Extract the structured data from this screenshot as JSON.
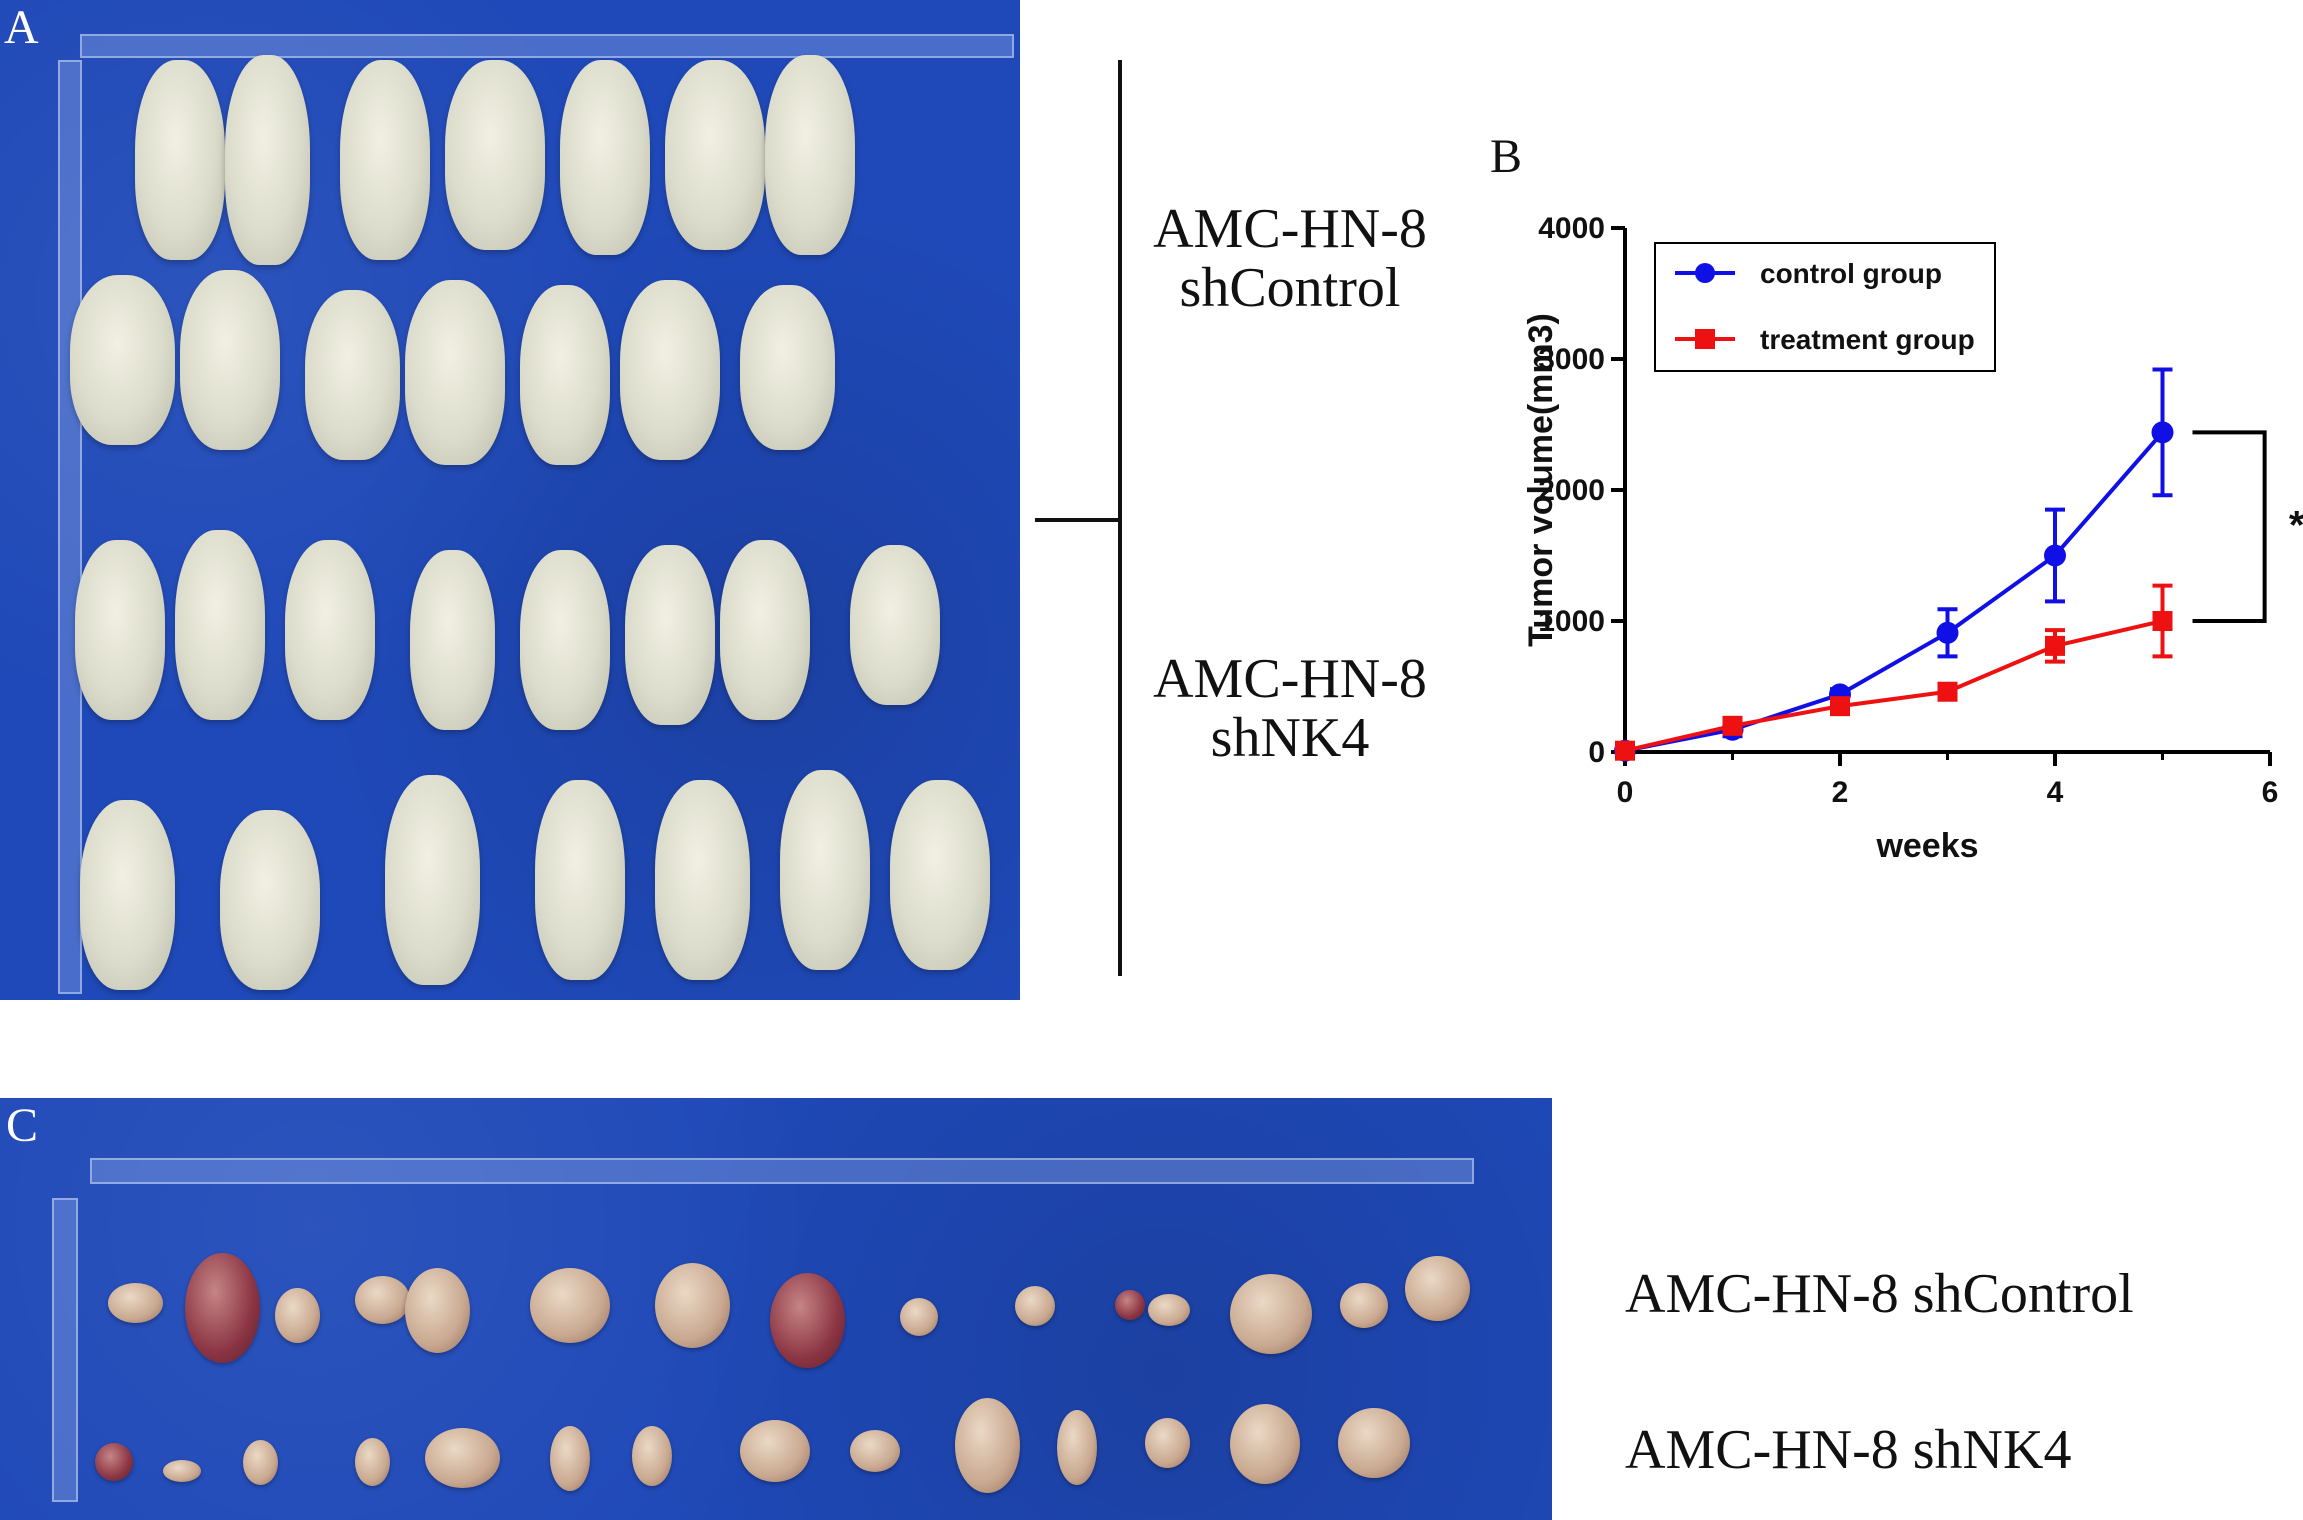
{
  "panel_a": {
    "letter": "A",
    "group_labels": [
      {
        "line1": "AMC-HN-8",
        "line2": "shControl"
      },
      {
        "line1": "AMC-HN-8",
        "line2": "shNK4"
      }
    ]
  },
  "panel_c": {
    "letter": "C",
    "row_labels": [
      "AMC-HN-8 shControl",
      "AMC-HN-8 shNK4"
    ]
  },
  "chart_data": {
    "type": "line",
    "panel_letter": "B",
    "xlabel": "weeks",
    "ylabel": "Tumor volume(mm3)",
    "xlim": [
      0,
      6
    ],
    "ylim": [
      0,
      4000
    ],
    "xticks": [
      "0",
      "2",
      "4",
      "6"
    ],
    "yticks": [
      "0",
      "1000",
      "2000",
      "3000",
      "4000"
    ],
    "legend_position": "top-left",
    "grid": false,
    "significance": "*",
    "series": [
      {
        "name": "control group",
        "color": "#1010e6",
        "marker": "circle",
        "x": [
          0,
          1,
          2,
          3,
          4,
          5
        ],
        "y": [
          10,
          170,
          440,
          910,
          1500,
          2440
        ],
        "err": [
          30,
          50,
          40,
          180,
          350,
          480
        ]
      },
      {
        "name": "treatment group",
        "color": "#ee1111",
        "marker": "square",
        "x": [
          0,
          1,
          2,
          3,
          4,
          5
        ],
        "y": [
          10,
          200,
          350,
          460,
          810,
          1000
        ],
        "err": [
          30,
          60,
          40,
          40,
          120,
          270
        ]
      }
    ]
  }
}
